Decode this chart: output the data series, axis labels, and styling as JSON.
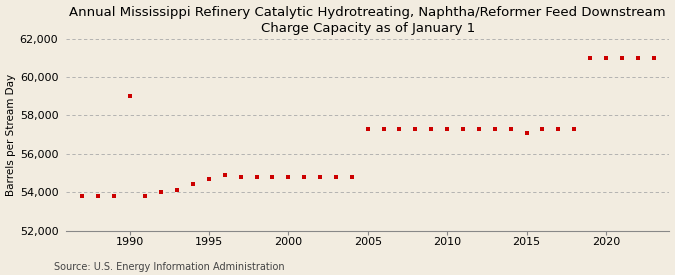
{
  "title": "Annual Mississippi Refinery Catalytic Hydrotreating, Naphtha/Reformer Feed Downstream\nCharge Capacity as of January 1",
  "ylabel": "Barrels per Stream Day",
  "source": "Source: U.S. Energy Information Administration",
  "background_color": "#f2ece0",
  "plot_background_color": "#f2ece0",
  "marker_color": "#cc0000",
  "grid_color": "#aaaaaa",
  "years": [
    1987,
    1988,
    1989,
    1990,
    1991,
    1992,
    1993,
    1994,
    1995,
    1996,
    1997,
    1998,
    1999,
    2000,
    2001,
    2002,
    2003,
    2004,
    2005,
    2006,
    2007,
    2008,
    2009,
    2010,
    2011,
    2012,
    2013,
    2014,
    2015,
    2016,
    2017,
    2018,
    2019,
    2020,
    2021,
    2022,
    2023
  ],
  "values": [
    53800,
    53800,
    53800,
    59000,
    53800,
    54000,
    54100,
    54400,
    54700,
    54900,
    54800,
    54800,
    54800,
    54800,
    54800,
    54800,
    54800,
    54800,
    57300,
    57300,
    57300,
    57300,
    57300,
    57300,
    57300,
    57300,
    57300,
    57300,
    57100,
    57300,
    57300,
    57300,
    61000,
    61000,
    61000,
    61000,
    61000
  ],
  "xlim": [
    1986,
    2024
  ],
  "ylim": [
    52000,
    62000
  ],
  "yticks": [
    52000,
    54000,
    56000,
    58000,
    60000,
    62000
  ],
  "xticks": [
    1990,
    1995,
    2000,
    2005,
    2010,
    2015,
    2020
  ],
  "title_fontsize": 9.5,
  "ylabel_fontsize": 7.5,
  "tick_fontsize": 8,
  "source_fontsize": 7
}
